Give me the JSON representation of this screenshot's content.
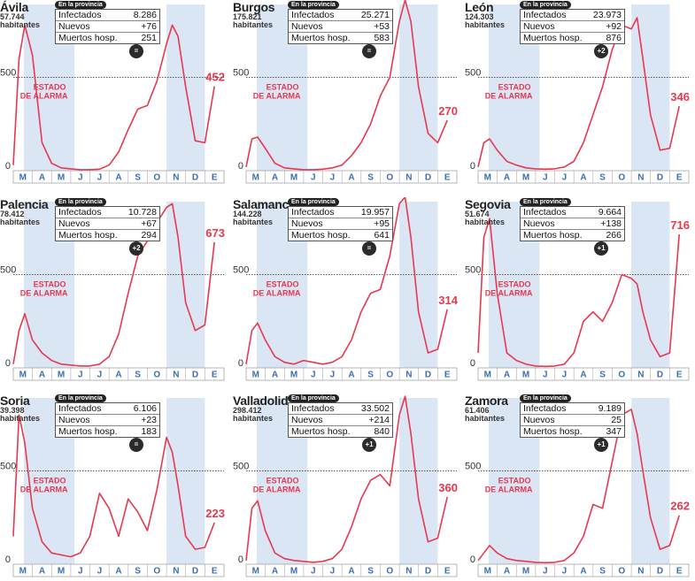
{
  "colors": {
    "line": "#e8384f",
    "shade": "#dbe6f5",
    "axis": "#333333",
    "month_text": "#3a6fb0",
    "badge": "#2b2b2b"
  },
  "info_tag": "En la provincia",
  "labels": {
    "infected": "Infectados",
    "new": "Nuevos",
    "deaths": "Muertos hosp.",
    "inhabitants": "habitantes",
    "alarm_line1": "ESTADO",
    "alarm_line2": "DE ALARMA"
  },
  "chart_data": [
    {
      "type": "line",
      "title": "Ávila",
      "population": "57.744",
      "infected": "8.286",
      "new": "+76",
      "deaths": "251",
      "badge": "=",
      "xticks": [
        "M",
        "A",
        "M",
        "J",
        "J",
        "A",
        "S",
        "O",
        "N",
        "D",
        "E"
      ],
      "ylim": [
        0,
        820
      ],
      "yticks": [
        0,
        500
      ],
      "reference_line": 500,
      "last_value": "452",
      "x": [
        0,
        0.3,
        0.6,
        1,
        1.5,
        2,
        2.5,
        3,
        3.5,
        4,
        4.5,
        5,
        5.5,
        6,
        6.5,
        7,
        7.5,
        8,
        8.3,
        8.6,
        9,
        9.5,
        10,
        10.5
      ],
      "y": [
        30,
        600,
        780,
        620,
        150,
        40,
        15,
        10,
        5,
        5,
        8,
        30,
        100,
        220,
        330,
        350,
        480,
        680,
        780,
        720,
        450,
        160,
        150,
        452
      ]
    },
    {
      "type": "line",
      "title": "Burgos",
      "population": "175.821",
      "infected": "25.271",
      "new": "+53",
      "deaths": "583",
      "badge": "=",
      "xticks": [
        "M",
        "A",
        "M",
        "J",
        "J",
        "A",
        "S",
        "O",
        "N",
        "D",
        "E"
      ],
      "ylim": [
        0,
        820
      ],
      "yticks": [
        0,
        500
      ],
      "reference_line": 500,
      "last_value": "270",
      "x": [
        0,
        0.3,
        0.6,
        1,
        1.5,
        2,
        2.5,
        3,
        3.5,
        4,
        4.5,
        5,
        5.5,
        6,
        6.5,
        7,
        7.5,
        8,
        8.3,
        8.6,
        9,
        9.5,
        10,
        10.5
      ],
      "y": [
        20,
        170,
        180,
        120,
        40,
        15,
        10,
        5,
        5,
        8,
        15,
        30,
        80,
        150,
        250,
        400,
        500,
        800,
        920,
        800,
        450,
        200,
        150,
        270
      ]
    },
    {
      "type": "line",
      "title": "León",
      "population": "124.303",
      "infected": "23.973",
      "new": "+92",
      "deaths": "876",
      "badge": "+2",
      "xticks": [
        "M",
        "A",
        "M",
        "J",
        "J",
        "A",
        "S",
        "O",
        "N",
        "D",
        "E"
      ],
      "ylim": [
        0,
        820
      ],
      "yticks": [
        0,
        500
      ],
      "reference_line": 500,
      "last_value": "346",
      "x": [
        0,
        0.3,
        0.6,
        1,
        1.5,
        2,
        2.5,
        3,
        3.5,
        4,
        4.5,
        5,
        5.5,
        6,
        6.5,
        7,
        7.5,
        8,
        8.3,
        8.6,
        9,
        9.5,
        10,
        10.5
      ],
      "y": [
        20,
        150,
        170,
        110,
        50,
        30,
        15,
        10,
        8,
        10,
        20,
        50,
        150,
        300,
        450,
        650,
        780,
        760,
        820,
        600,
        300,
        110,
        120,
        346
      ]
    },
    {
      "type": "line",
      "title": "Palencia",
      "population": "78.412",
      "infected": "10.728",
      "new": "+67",
      "deaths": "294",
      "badge": "+2",
      "xticks": [
        "M",
        "A",
        "M",
        "J",
        "J",
        "A",
        "S",
        "O",
        "N",
        "D",
        "E"
      ],
      "ylim": [
        0,
        820
      ],
      "yticks": [
        0,
        500
      ],
      "reference_line": 500,
      "last_value": "673",
      "x": [
        0,
        0.3,
        0.6,
        1,
        1.5,
        2,
        2.5,
        3,
        3.5,
        4,
        4.5,
        5,
        5.5,
        6,
        6.5,
        7,
        7.5,
        8,
        8.3,
        8.6,
        9,
        9.5,
        10,
        10.5
      ],
      "y": [
        20,
        200,
        290,
        150,
        80,
        40,
        20,
        15,
        10,
        10,
        20,
        60,
        180,
        400,
        600,
        680,
        780,
        860,
        880,
        700,
        350,
        200,
        230,
        673
      ]
    },
    {
      "type": "line",
      "title": "Salamanca",
      "population": "144.228",
      "infected": "19.957",
      "new": "+95",
      "deaths": "641",
      "badge": "=",
      "xticks": [
        "M",
        "A",
        "M",
        "J",
        "J",
        "A",
        "S",
        "O",
        "N",
        "D",
        "E"
      ],
      "ylim": [
        0,
        820
      ],
      "yticks": [
        0,
        500
      ],
      "reference_line": 500,
      "last_value": "314",
      "x": [
        0,
        0.3,
        0.6,
        1,
        1.5,
        2,
        2.5,
        3,
        3.5,
        4,
        4.5,
        5,
        5.5,
        6,
        6.5,
        7,
        7.5,
        8,
        8.3,
        8.6,
        9,
        9.5,
        10,
        10.5
      ],
      "y": [
        20,
        200,
        240,
        150,
        60,
        30,
        20,
        40,
        30,
        20,
        30,
        60,
        150,
        300,
        400,
        420,
        600,
        880,
        920,
        700,
        300,
        80,
        100,
        314
      ]
    },
    {
      "type": "line",
      "title": "Segovia",
      "population": "51.674",
      "infected": "9.664",
      "new": "+138",
      "deaths": "266",
      "badge": "+1",
      "xticks": [
        "M",
        "A",
        "M",
        "J",
        "J",
        "A",
        "S",
        "O",
        "N",
        "D",
        "E"
      ],
      "ylim": [
        0,
        820
      ],
      "yticks": [
        0,
        500
      ],
      "reference_line": 500,
      "last_value": "716",
      "x": [
        0,
        0.3,
        0.6,
        1,
        1.5,
        2,
        2.5,
        3,
        3.5,
        4,
        4.5,
        5,
        5.5,
        6,
        6.5,
        7,
        7.5,
        8,
        8.3,
        8.6,
        9,
        9.5,
        10,
        10.5
      ],
      "y": [
        80,
        700,
        800,
        400,
        80,
        40,
        20,
        10,
        8,
        10,
        20,
        80,
        250,
        300,
        250,
        350,
        500,
        480,
        450,
        300,
        150,
        60,
        80,
        716
      ]
    },
    {
      "type": "line",
      "title": "Soria",
      "population": "39.398",
      "infected": "6.106",
      "new": "+23",
      "deaths": "183",
      "badge": "=",
      "xticks": [
        "M",
        "A",
        "M",
        "J",
        "J",
        "A",
        "S",
        "O",
        "N",
        "D",
        "E"
      ],
      "ylim": [
        0,
        820
      ],
      "yticks": [
        0,
        500
      ],
      "reference_line": 500,
      "last_value": "223",
      "x": [
        0,
        0.3,
        0.6,
        1,
        1.5,
        2,
        2.5,
        3,
        3.5,
        4,
        4.5,
        5,
        5.5,
        6,
        6.5,
        7,
        7.5,
        8,
        8.3,
        8.6,
        9,
        9.5,
        10,
        10.5
      ],
      "y": [
        150,
        800,
        650,
        300,
        120,
        60,
        50,
        40,
        60,
        150,
        380,
        300,
        150,
        350,
        280,
        180,
        400,
        680,
        600,
        420,
        150,
        80,
        90,
        223
      ]
    },
    {
      "type": "line",
      "title": "Valladolid",
      "population": "298.412",
      "infected": "33.502",
      "new": "+214",
      "deaths": "840",
      "badge": "+1",
      "xticks": [
        "M",
        "A",
        "M",
        "J",
        "J",
        "A",
        "S",
        "O",
        "N",
        "D",
        "E"
      ],
      "ylim": [
        0,
        820
      ],
      "yticks": [
        0,
        500
      ],
      "reference_line": 500,
      "last_value": "360",
      "x": [
        0,
        0.3,
        0.6,
        1,
        1.5,
        2,
        2.5,
        3,
        3.5,
        4,
        4.5,
        5,
        5.5,
        6,
        6.5,
        7,
        7.5,
        8,
        8.3,
        8.6,
        9,
        9.5,
        10,
        10.5
      ],
      "y": [
        20,
        300,
        340,
        180,
        60,
        30,
        20,
        15,
        10,
        15,
        30,
        80,
        200,
        350,
        450,
        480,
        420,
        800,
        900,
        700,
        350,
        120,
        140,
        360
      ]
    },
    {
      "type": "line",
      "title": "Zamora",
      "population": "61.406",
      "infected": "9.189",
      "new": "25",
      "deaths": "347",
      "badge": "+1",
      "xticks": [
        "M",
        "A",
        "M",
        "J",
        "J",
        "A",
        "S",
        "O",
        "N",
        "D",
        "E"
      ],
      "ylim": [
        0,
        820
      ],
      "yticks": [
        0,
        500
      ],
      "reference_line": 500,
      "last_value": "262",
      "x": [
        0,
        0.3,
        0.6,
        1,
        1.5,
        2,
        2.5,
        3,
        3.5,
        4,
        4.5,
        5,
        5.5,
        6,
        6.5,
        7,
        7.5,
        8,
        8.3,
        8.6,
        9,
        9.5,
        10,
        10.5
      ],
      "y": [
        20,
        60,
        100,
        60,
        30,
        20,
        15,
        10,
        8,
        10,
        20,
        60,
        150,
        320,
        300,
        550,
        800,
        830,
        700,
        500,
        250,
        80,
        100,
        262
      ]
    }
  ]
}
